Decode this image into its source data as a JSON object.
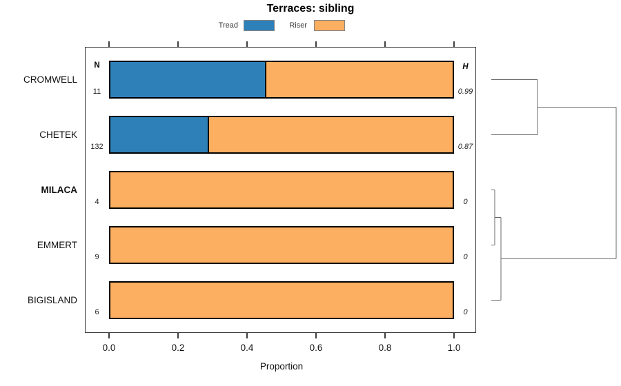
{
  "title": "Terraces: sibling",
  "legend": {
    "items": [
      {
        "label": "Tread",
        "color": "#2E80B9"
      },
      {
        "label": "Riser",
        "color": "#FCAE61"
      }
    ]
  },
  "columns": {
    "n_header": "N",
    "h_header": "H"
  },
  "axis": {
    "label": "Proportion",
    "ticks": [
      "0.0",
      "0.2",
      "0.4",
      "0.6",
      "0.8",
      "1.0"
    ]
  },
  "chart_data": {
    "type": "bar",
    "orientation": "horizontal",
    "stacked": true,
    "title": "Terraces: sibling",
    "xlabel": "Proportion",
    "xlim": [
      0,
      1
    ],
    "grid": false,
    "legend_position": "top",
    "categories": [
      "CROMWELL",
      "CHETEK",
      "MILACA",
      "EMMERT",
      "BIGISLAND"
    ],
    "bold_categories": [
      "MILACA"
    ],
    "series": [
      {
        "name": "Tread",
        "color": "#2E80B9",
        "values": [
          0.455,
          0.288,
          0,
          0,
          0
        ]
      },
      {
        "name": "Riser",
        "color": "#FCAE61",
        "values": [
          0.545,
          0.712,
          1,
          1,
          1
        ]
      }
    ],
    "n": [
      "11",
      "132",
      "4",
      "9",
      "6"
    ],
    "h": [
      "0.99",
      "0.87",
      "0",
      "0",
      "0"
    ],
    "dendrogram": {
      "description": "Right-side cluster tree: CROMWELL and CHETEK merge; MILACA and EMMERT merge at near-zero height, then join BIGISLAND; both clusters merge at the root on the far right.",
      "line_color": "#6a6a6a",
      "segments": [
        [
          22,
          115.5,
          89,
          115.5
        ],
        [
          22,
          195.5,
          89,
          195.5
        ],
        [
          89,
          115.5,
          89,
          195.5
        ],
        [
          89,
          155.5,
          203,
          155.5
        ],
        [
          22,
          275.5,
          27,
          275.5
        ],
        [
          22,
          355.5,
          27,
          355.5
        ],
        [
          27,
          275.5,
          27,
          355.5
        ],
        [
          27,
          315.5,
          36,
          315.5
        ],
        [
          22,
          435.5,
          36,
          435.5
        ],
        [
          36,
          315.5,
          36,
          435.5
        ],
        [
          36,
          375.5,
          203,
          375.5
        ],
        [
          203,
          155.5,
          203,
          375.5
        ]
      ]
    }
  }
}
